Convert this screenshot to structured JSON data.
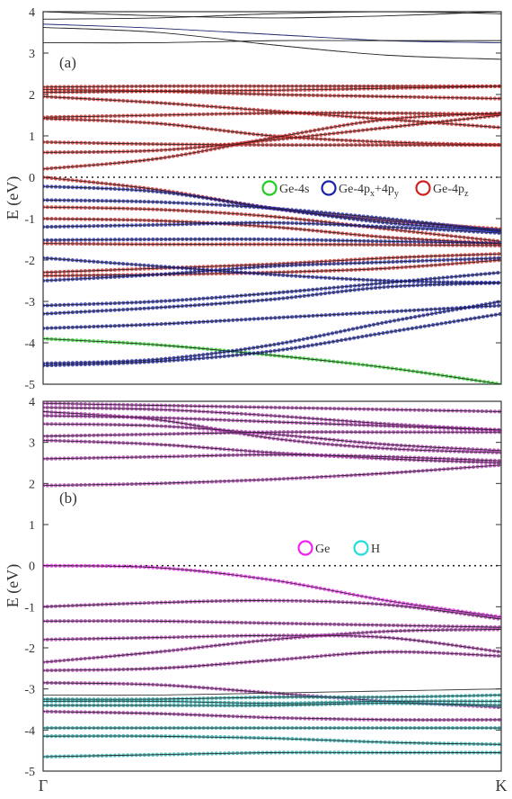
{
  "chart_data": [
    {
      "type": "line",
      "panel_label": "(a)",
      "ylabel": "E (eV)",
      "ylim": [
        -5,
        4
      ],
      "yticks": [
        "-5",
        "-4",
        "-3",
        "-2",
        "-1",
        "0",
        "1",
        "2",
        "3",
        "4"
      ],
      "fermi_level": 0,
      "legend": [
        {
          "text": "Ge-4s",
          "color": "#22cc22"
        },
        {
          "text": "Ge-4p",
          "sub1": "x",
          "mid": "+4p",
          "sub2": "y",
          "color": "#1a22aa"
        },
        {
          "text": "Ge-4p",
          "sub1": "z",
          "color": "#cc2222"
        }
      ],
      "series": [
        {
          "color": "#222222",
          "dots": false,
          "values": [
            4.0,
            3.9,
            3.85,
            3.9,
            4.0
          ]
        },
        {
          "color": "#222222",
          "dots": false,
          "values": [
            3.82,
            3.85,
            3.95,
            4.0,
            3.95
          ]
        },
        {
          "color": "#1a22aa",
          "dots": false,
          "values": [
            3.7,
            3.6,
            3.45,
            3.3,
            3.25
          ]
        },
        {
          "color": "#222222",
          "dots": false,
          "values": [
            3.25,
            3.25,
            3.3,
            3.3,
            3.3
          ]
        },
        {
          "color": "#222222",
          "dots": false,
          "values": [
            3.62,
            3.5,
            3.2,
            2.95,
            2.85
          ]
        },
        {
          "color": "#cc2222",
          "dots": true,
          "values": [
            2.18,
            2.2,
            2.2,
            2.2,
            2.2
          ]
        },
        {
          "color": "#cc2222",
          "dots": true,
          "values": [
            2.12,
            2.08,
            2.0,
            1.95,
            1.9
          ]
        },
        {
          "color": "#cc2222",
          "dots": true,
          "values": [
            2.05,
            2.08,
            2.1,
            2.15,
            2.2
          ]
        },
        {
          "color": "#cc2222",
          "dots": true,
          "values": [
            1.95,
            1.8,
            1.6,
            1.4,
            1.2
          ]
        },
        {
          "color": "#cc2222",
          "dots": true,
          "values": [
            1.45,
            1.5,
            1.55,
            1.55,
            1.52
          ]
        },
        {
          "color": "#cc2222",
          "dots": true,
          "values": [
            1.42,
            1.3,
            1.0,
            0.85,
            0.78
          ]
        },
        {
          "color": "#cc2222",
          "dots": true,
          "values": [
            0.85,
            0.8,
            0.78,
            0.78,
            0.78
          ]
        },
        {
          "color": "#cc2222",
          "dots": true,
          "values": [
            0.6,
            0.65,
            0.9,
            1.2,
            1.5
          ]
        },
        {
          "color": "#cc2222",
          "dots": true,
          "values": [
            0.2,
            0.45,
            0.95,
            1.4,
            1.55
          ]
        },
        {
          "color": "#cc2222",
          "dots": true,
          "values": [
            0.0,
            -0.3,
            -0.75,
            -1.05,
            -1.25
          ]
        },
        {
          "color": "#1a22aa",
          "dots": true,
          "values": [
            -0.22,
            -0.35,
            -0.75,
            -1.1,
            -1.3
          ]
        },
        {
          "color": "#1a22aa",
          "dots": true,
          "values": [
            -0.55,
            -0.6,
            -0.75,
            -1.0,
            -1.3
          ]
        },
        {
          "color": "#cc2222",
          "dots": true,
          "values": [
            -0.72,
            -0.78,
            -0.95,
            -1.25,
            -1.55
          ]
        },
        {
          "color": "#cc2222",
          "dots": true,
          "values": [
            -1.0,
            -1.05,
            -1.2,
            -1.45,
            -1.6
          ]
        },
        {
          "color": "#1a22aa",
          "dots": true,
          "values": [
            -1.2,
            -1.15,
            -1.1,
            -1.2,
            -1.35
          ]
        },
        {
          "color": "#1a22aa",
          "dots": true,
          "values": [
            -1.52,
            -1.5,
            -1.5,
            -1.55,
            -1.6
          ]
        },
        {
          "color": "#cc2222",
          "dots": true,
          "values": [
            -1.6,
            -1.62,
            -1.62,
            -1.63,
            -1.65
          ]
        },
        {
          "color": "#cc2222",
          "dots": true,
          "values": [
            -2.3,
            -2.2,
            -2.1,
            -1.95,
            -1.85
          ]
        },
        {
          "color": "#cc2222",
          "dots": true,
          "values": [
            -2.38,
            -2.35,
            -2.3,
            -2.2,
            -2.0
          ]
        },
        {
          "color": "#1a22aa",
          "dots": true,
          "values": [
            -2.5,
            -2.35,
            -2.15,
            -2.05,
            -1.95
          ]
        },
        {
          "color": "#1a22aa",
          "dots": true,
          "values": [
            -1.95,
            -2.15,
            -2.35,
            -2.5,
            -2.55
          ]
        },
        {
          "color": "#1a22aa",
          "dots": true,
          "values": [
            -3.1,
            -3.0,
            -2.8,
            -2.55,
            -2.3
          ]
        },
        {
          "color": "#1a22aa",
          "dots": true,
          "values": [
            -3.3,
            -3.15,
            -2.95,
            -2.65,
            -2.55
          ]
        },
        {
          "color": "#1a22aa",
          "dots": true,
          "values": [
            -3.65,
            -3.55,
            -3.4,
            -3.25,
            -3.1
          ]
        },
        {
          "color": "#22cc22",
          "dots": true,
          "values": [
            -3.9,
            -4.05,
            -4.3,
            -4.6,
            -5.0
          ]
        },
        {
          "color": "#1a22aa",
          "dots": true,
          "values": [
            -4.5,
            -4.4,
            -4.05,
            -3.5,
            -3.0
          ]
        },
        {
          "color": "#1a22aa",
          "dots": true,
          "values": [
            -4.55,
            -4.45,
            -4.2,
            -3.75,
            -3.3
          ]
        }
      ]
    },
    {
      "type": "line",
      "panel_label": "(b)",
      "ylabel": "E (eV)",
      "ylim": [
        -5,
        4
      ],
      "yticks": [
        "-5",
        "-4",
        "-3",
        "-2",
        "-1",
        "0",
        "1",
        "2",
        "3",
        "4"
      ],
      "fermi_level": 0,
      "xticks": [
        "Γ",
        "K"
      ],
      "legend": [
        {
          "text": "Ge",
          "color": "#ee22ee"
        },
        {
          "text": "H",
          "color": "#22dddd"
        }
      ],
      "series": [
        {
          "color": "#aa33aa",
          "dots": true,
          "values": [
            3.95,
            3.9,
            3.85,
            3.8,
            3.75
          ]
        },
        {
          "color": "#aa33aa",
          "dots": true,
          "values": [
            3.85,
            3.8,
            3.65,
            3.45,
            3.3
          ]
        },
        {
          "color": "#aa33aa",
          "dots": true,
          "values": [
            3.75,
            3.55,
            3.1,
            2.85,
            2.75
          ]
        },
        {
          "color": "#aa33aa",
          "dots": true,
          "values": [
            3.65,
            3.6,
            3.5,
            3.4,
            3.3
          ]
        },
        {
          "color": "#aa33aa",
          "dots": true,
          "values": [
            3.45,
            3.4,
            3.2,
            2.95,
            2.8
          ]
        },
        {
          "color": "#aa33aa",
          "dots": true,
          "values": [
            3.15,
            3.2,
            3.25,
            3.25,
            3.25
          ]
        },
        {
          "color": "#aa33aa",
          "dots": true,
          "values": [
            3.05,
            2.95,
            2.75,
            2.6,
            2.5
          ]
        },
        {
          "color": "#aa33aa",
          "dots": true,
          "values": [
            2.6,
            2.65,
            2.7,
            2.65,
            2.55
          ]
        },
        {
          "color": "#aa33aa",
          "dots": true,
          "values": [
            1.95,
            2.0,
            2.1,
            2.25,
            2.45
          ]
        },
        {
          "color": "#ee22ee",
          "dots": true,
          "values": [
            0.0,
            -0.05,
            -0.35,
            -0.85,
            -1.25
          ]
        },
        {
          "color": "#aa33aa",
          "dots": true,
          "values": [
            -1.0,
            -0.9,
            -0.85,
            -0.95,
            -1.3
          ]
        },
        {
          "color": "#aa33aa",
          "dots": true,
          "values": [
            -1.35,
            -1.35,
            -1.4,
            -1.45,
            -1.5
          ]
        },
        {
          "color": "#aa33aa",
          "dots": true,
          "values": [
            -2.35,
            -2.1,
            -1.8,
            -1.6,
            -1.55
          ]
        },
        {
          "color": "#aa33aa",
          "dots": true,
          "values": [
            -1.8,
            -1.75,
            -1.7,
            -1.75,
            -2.1
          ]
        },
        {
          "color": "#aa33aa",
          "dots": true,
          "values": [
            -2.55,
            -2.5,
            -2.3,
            -2.1,
            -2.2
          ]
        },
        {
          "color": "#aa33aa",
          "dots": true,
          "values": [
            -2.85,
            -2.9,
            -3.1,
            -3.3,
            -3.45
          ]
        },
        {
          "color": "#555555",
          "dots": false,
          "values": [
            -3.15,
            -3.15,
            -3.1,
            -3.05,
            -3.0
          ]
        },
        {
          "color": "#22aaaa",
          "dots": true,
          "values": [
            -3.25,
            -3.25,
            -3.2,
            -3.2,
            -3.15
          ]
        },
        {
          "color": "#22aaaa",
          "dots": true,
          "values": [
            -3.3,
            -3.3,
            -3.35,
            -3.3,
            -3.3
          ]
        },
        {
          "color": "#22aaaa",
          "dots": true,
          "values": [
            -3.4,
            -3.4,
            -3.4,
            -3.35,
            -3.4
          ]
        },
        {
          "color": "#aa33aa",
          "dots": true,
          "values": [
            -3.55,
            -3.6,
            -3.7,
            -3.75,
            -3.75
          ]
        },
        {
          "color": "#22aaaa",
          "dots": true,
          "values": [
            -3.95,
            -3.95,
            -3.95,
            -3.95,
            -3.95
          ]
        },
        {
          "color": "#22aaaa",
          "dots": true,
          "values": [
            -4.15,
            -4.15,
            -4.2,
            -4.3,
            -4.35
          ]
        },
        {
          "color": "#22aaaa",
          "dots": true,
          "values": [
            -4.65,
            -4.6,
            -4.55,
            -4.55,
            -4.55
          ]
        }
      ]
    }
  ]
}
